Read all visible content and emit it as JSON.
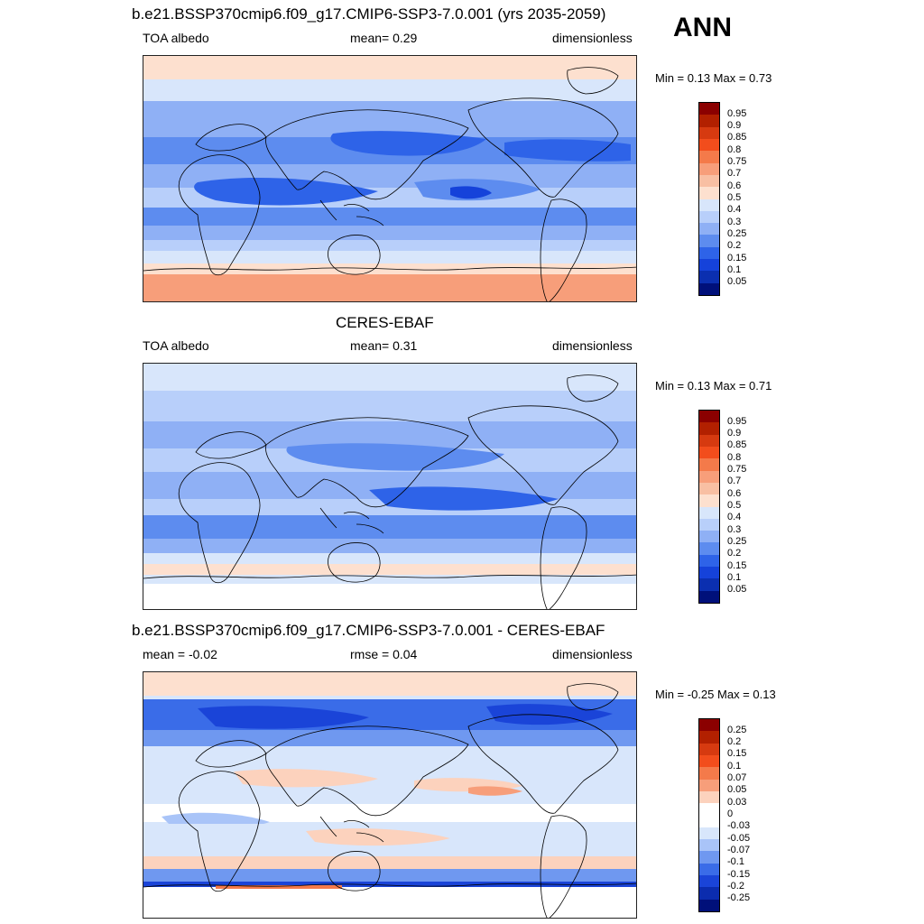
{
  "season": "ANN",
  "panels": [
    {
      "title": "b.e21.BSSP370cmip6.f09_g17.CMIP6-SSP3-7.0.001 (yrs 2035-2059)",
      "left_label": "TOA albedo",
      "mid_label": "mean=   0.29",
      "right_label": "dimensionless",
      "minmax": "Min =   0.13 Max =   0.73",
      "colorbar": {
        "labels": [
          "0.95",
          "0.9",
          "0.85",
          "0.8",
          "0.75",
          "0.7",
          "0.6",
          "0.5",
          "0.4",
          "0.3",
          "0.25",
          "0.2",
          "0.15",
          "0.1",
          "0.05"
        ],
        "colors": [
          "#8b0000",
          "#b22000",
          "#d63a10",
          "#f24d1c",
          "#f47a4a",
          "#f79e7a",
          "#f8bfa3",
          "#fde0cf",
          "#d8e6fb",
          "#b8cffa",
          "#8fb0f5",
          "#5d8cef",
          "#2e63e8",
          "#1542da",
          "#0b2fb0",
          "#00107a"
        ]
      }
    },
    {
      "title": "CERES-EBAF",
      "left_label": "TOA albedo",
      "mid_label": "mean=   0.31",
      "right_label": "dimensionless",
      "minmax": "Min =   0.13 Max =   0.71",
      "colorbar": {
        "labels": [
          "0.95",
          "0.9",
          "0.85",
          "0.8",
          "0.75",
          "0.7",
          "0.6",
          "0.5",
          "0.4",
          "0.3",
          "0.25",
          "0.2",
          "0.15",
          "0.1",
          "0.05"
        ],
        "colors": [
          "#8b0000",
          "#b22000",
          "#d63a10",
          "#f24d1c",
          "#f47a4a",
          "#f79e7a",
          "#f8bfa3",
          "#fde0cf",
          "#d8e6fb",
          "#b8cffa",
          "#8fb0f5",
          "#5d8cef",
          "#2e63e8",
          "#1542da",
          "#0b2fb0",
          "#00107a"
        ]
      }
    },
    {
      "title": "b.e21.BSSP370cmip6.f09_g17.CMIP6-SSP3-7.0.001 - CERES-EBAF",
      "left_label": "mean =  -0.02",
      "mid_label": "rmse =   0.04",
      "right_label": "dimensionless",
      "minmax": "Min =  -0.25 Max =   0.13",
      "colorbar": {
        "labels": [
          "0.25",
          "0.2",
          "0.15",
          "0.1",
          "0.07",
          "0.05",
          "0.03",
          "0",
          "-0.03",
          "-0.05",
          "-0.07",
          "-0.1",
          "-0.15",
          "-0.2",
          "-0.25"
        ],
        "colors": [
          "#8b0000",
          "#b22000",
          "#d63a10",
          "#f24d1c",
          "#f47a4a",
          "#f79e7a",
          "#fcd2bd",
          "#ffffff",
          "#ffffff",
          "#d8e6fb",
          "#a9c4f8",
          "#6f98f0",
          "#3a6ce8",
          "#1a44d8",
          "#0b2cae",
          "#00107a"
        ]
      }
    }
  ]
}
